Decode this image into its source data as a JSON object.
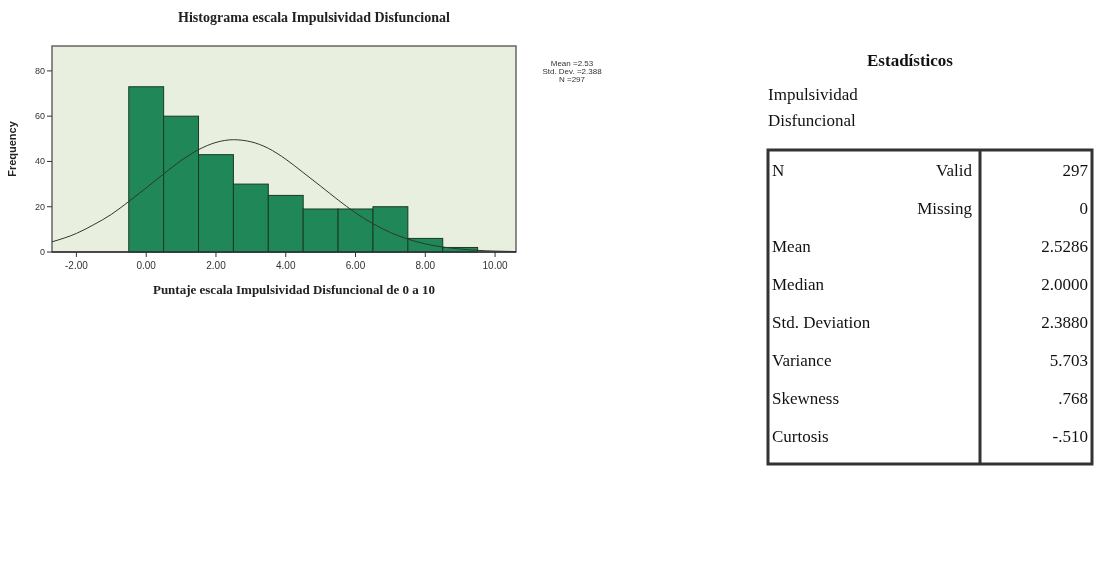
{
  "chart_data": [
    {
      "type": "histogram",
      "title": "Histograma escala Impulsividad Disfuncional",
      "xlabel": "Puntaje escala Impulsividad Disfuncional de 0 a 10",
      "ylabel": "Frequency",
      "bins": [
        -0.5,
        0.5,
        1.5,
        2.5,
        3.5,
        4.5,
        5.5,
        6.5,
        7.5,
        8.5,
        9.5
      ],
      "values": [
        73,
        60,
        43,
        30,
        25,
        19,
        19,
        20,
        6,
        2
      ],
      "color": "#1f8758",
      "series": [
        {
          "type": "line",
          "color": "#2b3a2e",
          "x": [
            -2.7,
            -2,
            -1.5,
            -1,
            -0.5,
            0,
            0.5,
            1,
            1.5,
            2,
            2.5,
            3,
            3.5,
            4,
            4.5,
            5,
            5.5,
            6,
            6.5,
            7,
            7.5,
            8,
            9,
            10,
            10.6
          ],
          "values": [
            4.5,
            8.2,
            12.1,
            16.6,
            22.3,
            28.3,
            34.5,
            40.4,
            45.2,
            48.4,
            49.6,
            48.7,
            45.8,
            41.0,
            35.1,
            29.1,
            23.0,
            17.3,
            12.5,
            8.6,
            5.7,
            3.6,
            1.3,
            0.4,
            0.2
          ]
        }
      ],
      "xlim": [
        -2.7,
        10.6
      ],
      "xticks": [
        {
          "value": -2,
          "label": "-2.00"
        },
        {
          "value": 0,
          "label": "0.00"
        },
        {
          "value": 2,
          "label": "2.00"
        },
        {
          "value": 4,
          "label": "4.00"
        },
        {
          "value": 6,
          "label": "6.00"
        },
        {
          "value": 8,
          "label": "8.00"
        },
        {
          "value": 10,
          "label": "10.00"
        }
      ],
      "ylim": [
        0,
        91
      ],
      "yticks": [
        0,
        20,
        40,
        60,
        80
      ],
      "grid": false,
      "annotations": [
        "Mean =2.53",
        "Std. Dev. =2.388",
        "N =297"
      ]
    },
    {
      "type": "other",
      "title": "Estadísticos",
      "subtitle": "Impulsividad Disfuncional",
      "annotations": [
        "N"
      ],
      "categories": [
        "Valid",
        "Missing",
        "Mean",
        "Median",
        "Std. Deviation",
        "Variance",
        "Skewness",
        "Curtosis"
      ],
      "values": [
        297,
        0,
        2.5286,
        2,
        2.388,
        5.703,
        0.768,
        -0.51
      ],
      "value_labels": [
        "297",
        "0",
        "2.5286",
        "2.0000",
        "2.3880",
        "5.703",
        ".768",
        "-.510"
      ]
    }
  ]
}
